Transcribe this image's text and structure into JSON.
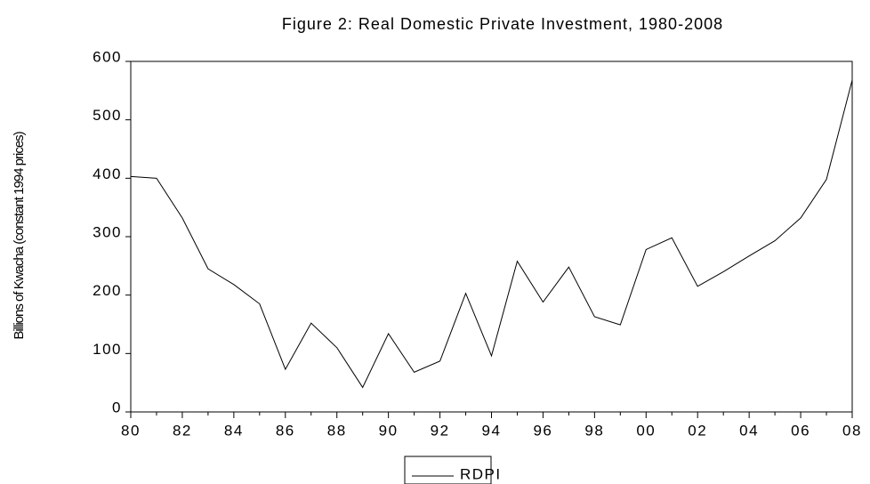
{
  "chart_data": {
    "type": "line",
    "title": "Figure 2: Real Domestic Private Investment, 1980-2008",
    "y_label": "Billions of Kwacha (constant 1994 prices)",
    "categories": [
      "80",
      null,
      "82",
      null,
      "84",
      null,
      "86",
      null,
      "88",
      null,
      "90",
      null,
      "92",
      null,
      "94",
      null,
      "96",
      null,
      "98",
      null,
      "00",
      null,
      "02",
      null,
      "04",
      null,
      "06",
      null,
      "08"
    ],
    "series": [
      {
        "name": "RDPI",
        "color": "#000000",
        "values": [
          403,
          400,
          332,
          245,
          218,
          185,
          73,
          152,
          110,
          42,
          134,
          68,
          87,
          203,
          96,
          258,
          188,
          248,
          163,
          149,
          278,
          298,
          215,
          240,
          267,
          293,
          332,
          398,
          568
        ]
      }
    ],
    "ylim": [
      0,
      600
    ],
    "yticks": [
      0,
      100,
      200,
      300,
      400,
      500,
      600
    ],
    "grid": false
  }
}
